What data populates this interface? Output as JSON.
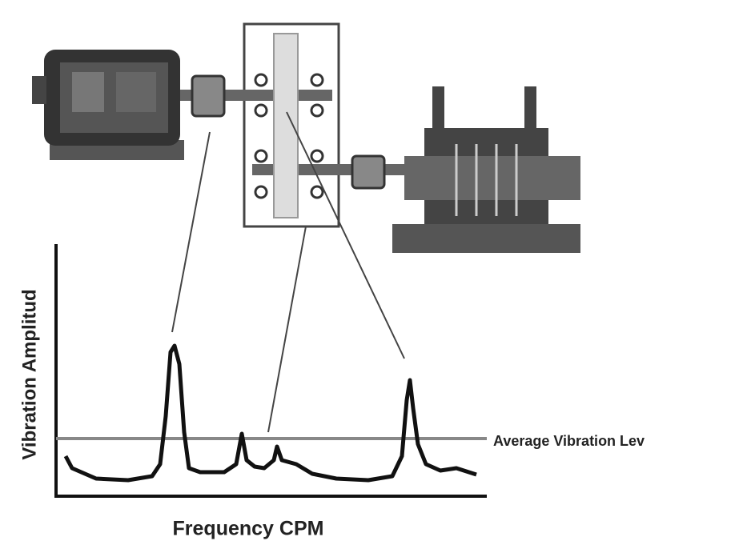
{
  "axis_labels": {
    "y": "Vibration Amplitud",
    "x": "Frequency CPM"
  },
  "annotation": "Average Vibration Lev"
}
